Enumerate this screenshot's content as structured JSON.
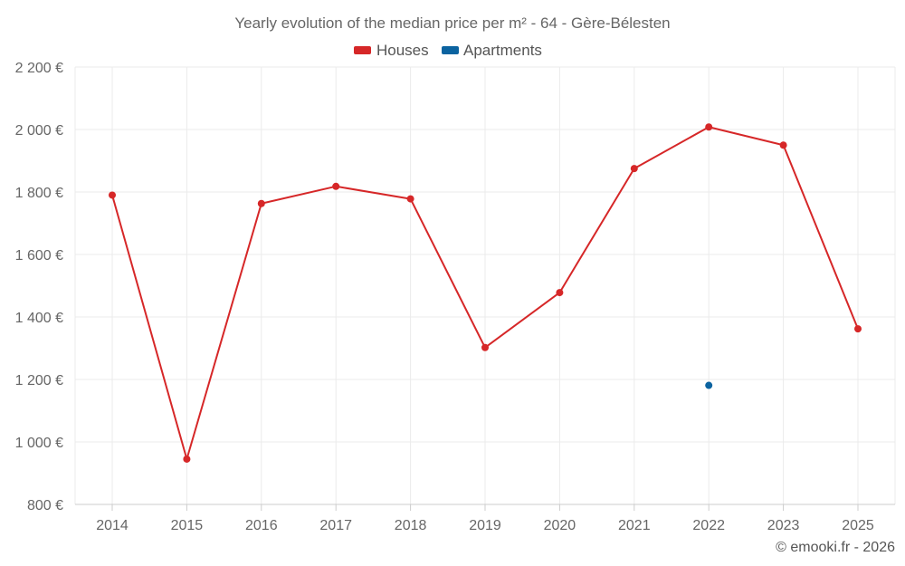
{
  "chart_data": {
    "type": "line",
    "title": "Yearly evolution of the median price per m² - 64 - Gère-Bélesten",
    "categories": [
      "2014",
      "2015",
      "2016",
      "2017",
      "2018",
      "2019",
      "2020",
      "2021",
      "2022",
      "2023",
      "2025"
    ],
    "series": [
      {
        "name": "Houses",
        "color": "#d62728",
        "values": [
          1790,
          945,
          1763,
          1818,
          1778,
          1302,
          1478,
          1875,
          2008,
          1950,
          1362
        ]
      },
      {
        "name": "Apartments",
        "color": "#0b63a0",
        "values": [
          null,
          null,
          null,
          null,
          null,
          null,
          null,
          null,
          1181,
          null,
          null
        ]
      }
    ],
    "ylim": [
      800,
      2200
    ],
    "yticks": [
      800,
      1000,
      1200,
      1400,
      1600,
      1800,
      2000,
      2200
    ],
    "ytick_labels": [
      "800 €",
      "1 000 €",
      "1 200 €",
      "1 400 €",
      "1 600 €",
      "1 800 €",
      "2 000 €",
      "2 200 €"
    ],
    "xlabel": "",
    "ylabel": "",
    "grid": true,
    "legend_position": "top-center"
  },
  "credit": "© emooki.fr - 2026"
}
